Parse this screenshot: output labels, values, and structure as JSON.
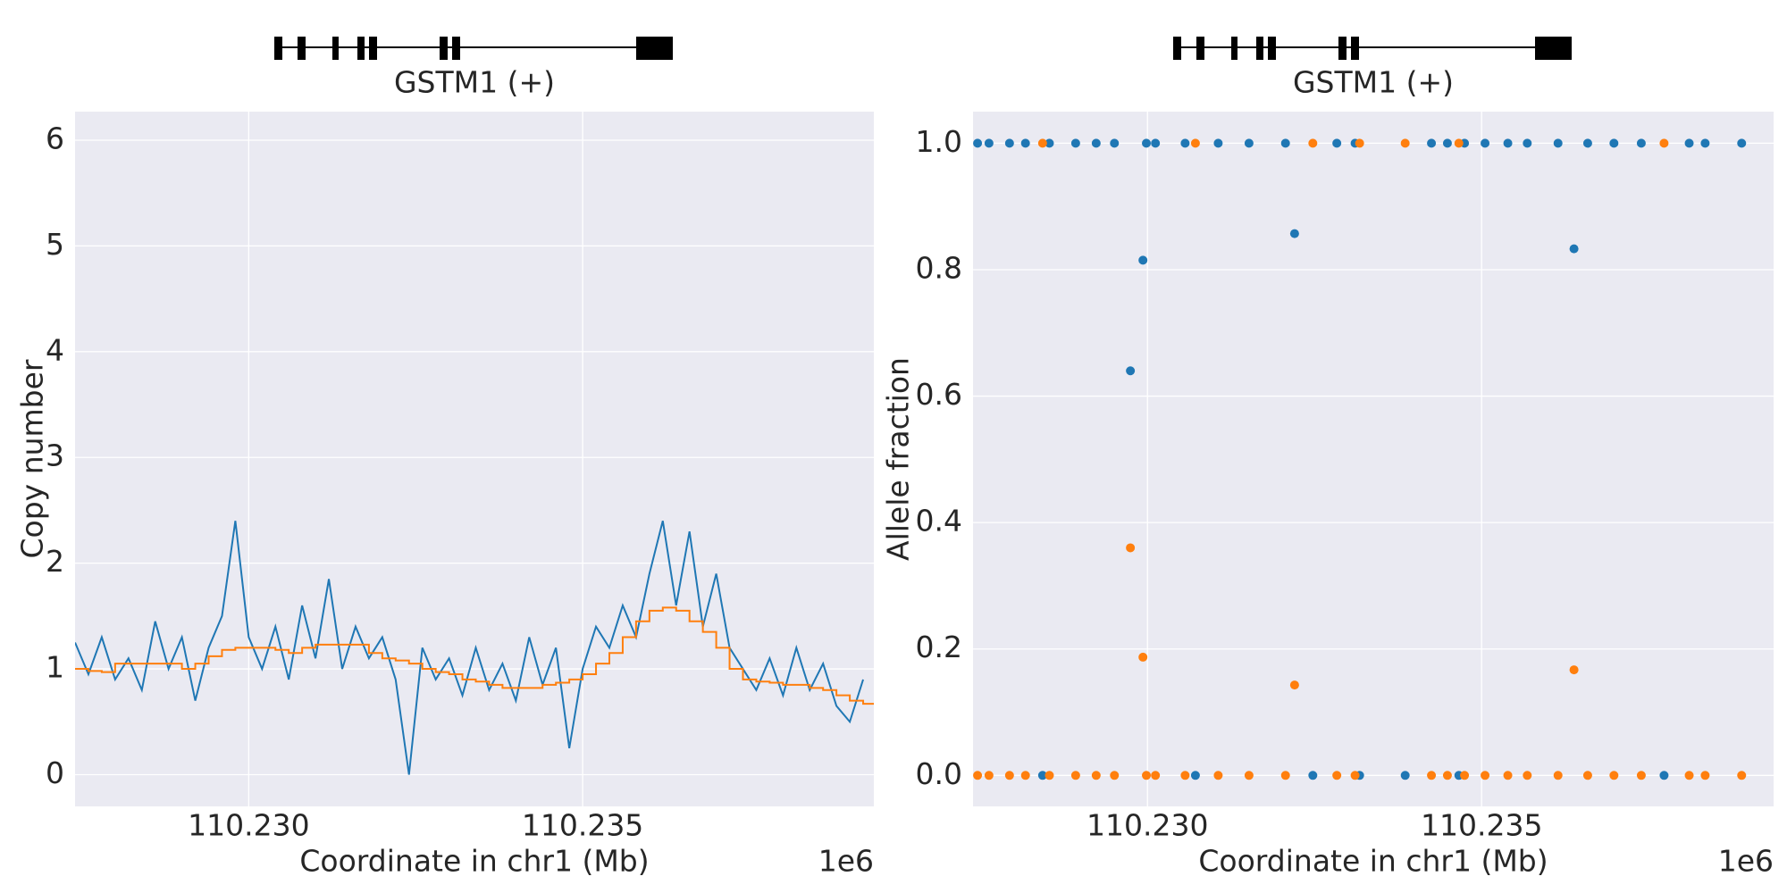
{
  "chart_data": [
    {
      "type": "line",
      "gene_label": "GSTM1 (+)",
      "ylabel": "Copy number",
      "xlabel": "Coordinate in chr1 (Mb)",
      "offset_label": "1e6",
      "xlim": [
        110227400,
        110239360
      ],
      "ylim": [
        -0.3,
        6.27
      ],
      "grid": true,
      "xticks": [
        {
          "value": 110230000,
          "label": "110.230"
        },
        {
          "value": 110235000,
          "label": "110.235"
        }
      ],
      "yticks": [
        0,
        1,
        2,
        3,
        4,
        5,
        6
      ],
      "x": [
        110227400,
        110227600,
        110227800,
        110228000,
        110228200,
        110228400,
        110228600,
        110228800,
        110229000,
        110229200,
        110229400,
        110229600,
        110229800,
        110230000,
        110230200,
        110230400,
        110230600,
        110230800,
        110231000,
        110231200,
        110231400,
        110231600,
        110231800,
        110232000,
        110232200,
        110232400,
        110232600,
        110232800,
        110233000,
        110233200,
        110233400,
        110233600,
        110233800,
        110234000,
        110234200,
        110234400,
        110234600,
        110234800,
        110235000,
        110235200,
        110235400,
        110235600,
        110235800,
        110236000,
        110236200,
        110236400,
        110236600,
        110236800,
        110237000,
        110237200,
        110237400,
        110237600,
        110237800,
        110238000,
        110238200,
        110238400,
        110238600,
        110238800,
        110239000,
        110239200
      ],
      "series": [
        {
          "color": "#1f77b4",
          "values": [
            1.25,
            0.95,
            1.3,
            0.9,
            1.1,
            0.8,
            1.45,
            1.0,
            1.3,
            0.7,
            1.2,
            1.5,
            2.4,
            1.3,
            1.0,
            1.4,
            0.9,
            1.6,
            1.1,
            1.85,
            1.0,
            1.4,
            1.1,
            1.3,
            0.9,
            0.0,
            1.2,
            0.9,
            1.1,
            0.75,
            1.2,
            0.8,
            1.05,
            0.7,
            1.3,
            0.85,
            1.2,
            0.25,
            1.0,
            1.4,
            1.2,
            1.6,
            1.3,
            1.9,
            2.4,
            1.6,
            2.3,
            1.4,
            1.9,
            1.2,
            1.0,
            0.8,
            1.1,
            0.75,
            1.2,
            0.8,
            1.05,
            0.65,
            0.5,
            0.9
          ]
        },
        {
          "color": "#ff7f0e",
          "drawstyle": "steps-post",
          "values": [
            1.0,
            0.98,
            0.97,
            1.05,
            1.05,
            1.05,
            1.05,
            1.05,
            1.0,
            1.05,
            1.12,
            1.18,
            1.2,
            1.2,
            1.2,
            1.18,
            1.15,
            1.2,
            1.23,
            1.23,
            1.23,
            1.23,
            1.15,
            1.1,
            1.08,
            1.05,
            1.0,
            0.97,
            0.95,
            0.9,
            0.88,
            0.85,
            0.82,
            0.82,
            0.82,
            0.85,
            0.87,
            0.9,
            0.95,
            1.05,
            1.15,
            1.3,
            1.45,
            1.55,
            1.58,
            1.55,
            1.45,
            1.35,
            1.2,
            1.0,
            0.9,
            0.88,
            0.87,
            0.85,
            0.85,
            0.82,
            0.8,
            0.75,
            0.7,
            0.67
          ]
        }
      ]
    },
    {
      "type": "scatter",
      "gene_label": "GSTM1 (+)",
      "ylabel": "Allele fraction",
      "xlabel": "Coordinate in chr1 (Mb)",
      "offset_label": "1e6",
      "xlim": [
        110227389,
        110239369
      ],
      "ylim": [
        -0.049,
        1.05
      ],
      "grid": true,
      "xticks": [
        {
          "value": 110230000,
          "label": "110.230"
        },
        {
          "value": 110235000,
          "label": "110.235"
        }
      ],
      "yticks": [
        {
          "value": 0,
          "label": "0.0"
        },
        {
          "value": 0.2,
          "label": "0.2"
        },
        {
          "value": 0.4,
          "label": "0.4"
        },
        {
          "value": 0.6,
          "label": "0.6"
        },
        {
          "value": 0.8,
          "label": "0.8"
        },
        {
          "value": 1,
          "label": "1.0"
        }
      ],
      "series": [
        {
          "color": "#1f77b4",
          "x": [
            110227457,
            110227628,
            110227935,
            110228174,
            110228532,
            110228925,
            110229232,
            110229505,
            110229983,
            110230119,
            110230563,
            110231058,
            110231519,
            110232065,
            110232833,
            110233106,
            110234249,
            110234488,
            110234744,
            110235051,
            110235392,
            110235683,
            110236143,
            110236587,
            110236980,
            110237389,
            110238106,
            110238345,
            110238891,
            110228430,
            110230717,
            110232474,
            110233174,
            110233856,
            110234659,
            110237730,
            110229744,
            110229932,
            110232201,
            110236382
          ],
          "values": [
            1,
            1,
            1,
            1,
            1,
            1,
            1,
            1,
            1,
            1,
            1,
            1,
            1,
            1,
            1,
            1,
            1,
            1,
            1,
            1,
            1,
            1,
            1,
            1,
            1,
            1,
            1,
            1,
            1,
            0,
            0,
            0,
            0,
            0,
            0,
            0,
            0.64,
            0.815,
            0.857,
            0.833
          ]
        },
        {
          "color": "#ff7f0e",
          "x": [
            110228430,
            110230717,
            110232474,
            110233174,
            110233856,
            110234659,
            110237730,
            110227457,
            110227628,
            110227935,
            110228174,
            110228532,
            110228925,
            110229232,
            110229505,
            110229983,
            110230119,
            110230563,
            110231058,
            110231519,
            110232065,
            110232833,
            110233106,
            110234249,
            110234488,
            110234744,
            110235051,
            110235392,
            110235683,
            110236143,
            110236587,
            110236980,
            110237389,
            110238106,
            110238345,
            110238891,
            110229744,
            110229932,
            110232201,
            110236382
          ],
          "values": [
            1,
            1,
            1,
            1,
            1,
            1,
            1,
            0,
            0,
            0,
            0,
            0,
            0,
            0,
            0,
            0,
            0,
            0,
            0,
            0,
            0,
            0,
            0,
            0,
            0,
            0,
            0,
            0,
            0,
            0,
            0,
            0,
            0,
            0,
            0,
            0,
            0.36,
            0.187,
            0.143,
            0.167
          ]
        }
      ]
    }
  ]
}
